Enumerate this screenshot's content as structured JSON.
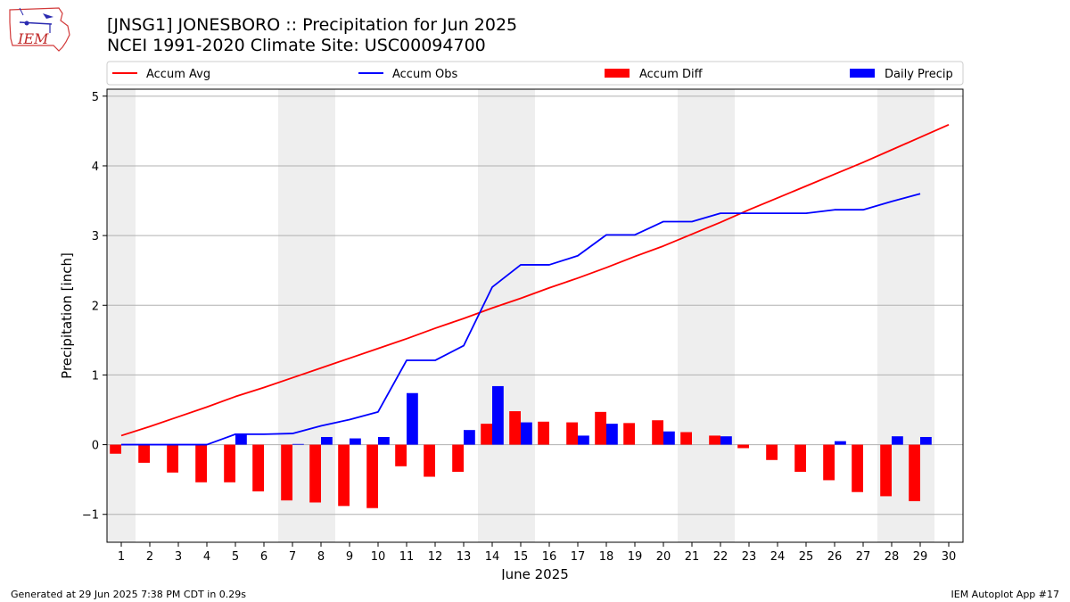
{
  "header": {
    "title_line1": "[JNSG1] JONESBORO :: Precipitation for Jun 2025",
    "title_line2": "NCEI 1991-2020 Climate Site: USC00094700",
    "logo_text": "IEM"
  },
  "footer": {
    "generated": "Generated at 29 Jun 2025 7:38 PM CDT in 0.29s",
    "app": "IEM Autoplot App #17"
  },
  "colors": {
    "accum_avg": "#ff0000",
    "accum_obs": "#0000ff",
    "accum_diff": "#ff0000",
    "daily_precip": "#0000ff",
    "weekend_shade": "#eeeeee",
    "grid": "#b0b0b0"
  },
  "chart_data": {
    "type": "bar",
    "xlabel": "June 2025",
    "ylabel": "Precipitation [inch]",
    "ylim": [
      -1.4,
      5.1
    ],
    "yticks": [
      -1,
      0,
      1,
      2,
      3,
      4,
      5
    ],
    "ytick_labels": [
      "−1",
      "0",
      "1",
      "2",
      "3",
      "4",
      "5"
    ],
    "xlim": [
      0.5,
      30.5
    ],
    "categories": [
      "1",
      "2",
      "3",
      "4",
      "5",
      "6",
      "7",
      "8",
      "9",
      "10",
      "11",
      "12",
      "13",
      "14",
      "15",
      "16",
      "17",
      "18",
      "19",
      "20",
      "21",
      "22",
      "23",
      "24",
      "25",
      "26",
      "27",
      "28",
      "29",
      "30"
    ],
    "grid": "horizontal",
    "legend_position": "top",
    "shaded_day_ranges": [
      [
        0.5,
        1.5
      ],
      [
        6.5,
        8.5
      ],
      [
        13.5,
        15.5
      ],
      [
        20.5,
        22.5
      ],
      [
        27.5,
        29.5
      ]
    ],
    "legend": [
      "Accum Avg",
      "Accum Obs",
      "Accum Diff",
      "Daily Precip"
    ],
    "series": [
      {
        "name": "Accum Avg",
        "kind": "line",
        "x": [
          1,
          2,
          3,
          4,
          5,
          6,
          7,
          8,
          9,
          10,
          11,
          12,
          13,
          14,
          15,
          16,
          17,
          18,
          19,
          20,
          21,
          22,
          23,
          24,
          25,
          26,
          27,
          28,
          29,
          30
        ],
        "values": [
          0.13,
          0.26,
          0.4,
          0.54,
          0.69,
          0.82,
          0.96,
          1.1,
          1.24,
          1.38,
          1.52,
          1.67,
          1.81,
          1.96,
          2.1,
          2.25,
          2.39,
          2.54,
          2.7,
          2.85,
          3.02,
          3.19,
          3.37,
          3.54,
          3.71,
          3.88,
          4.05,
          4.23,
          4.41,
          4.59
        ]
      },
      {
        "name": "Accum Obs",
        "kind": "line",
        "x": [
          1,
          2,
          3,
          4,
          5,
          6,
          7,
          8,
          9,
          10,
          11,
          12,
          13,
          14,
          15,
          16,
          17,
          18,
          19,
          20,
          21,
          22,
          23,
          24,
          25,
          26,
          27,
          28,
          29
        ],
        "values": [
          0.0,
          0.0,
          0.0,
          0.0,
          0.15,
          0.15,
          0.16,
          0.27,
          0.36,
          0.47,
          1.21,
          1.21,
          1.42,
          2.26,
          2.58,
          2.58,
          2.71,
          3.01,
          3.01,
          3.2,
          3.2,
          3.32,
          3.32,
          3.32,
          3.32,
          3.37,
          3.37,
          3.49,
          3.6
        ]
      },
      {
        "name": "Accum Diff",
        "kind": "bar",
        "offset": -0.2,
        "x": [
          1,
          2,
          3,
          4,
          5,
          6,
          7,
          8,
          9,
          10,
          11,
          12,
          13,
          14,
          15,
          16,
          17,
          18,
          19,
          20,
          21,
          22,
          23,
          24,
          25,
          26,
          27,
          28,
          29
        ],
        "values": [
          -0.13,
          -0.26,
          -0.4,
          -0.54,
          -0.54,
          -0.67,
          -0.8,
          -0.83,
          -0.88,
          -0.91,
          -0.31,
          -0.46,
          -0.39,
          0.3,
          0.48,
          0.33,
          0.32,
          0.47,
          0.31,
          0.35,
          0.18,
          0.13,
          -0.05,
          -0.22,
          -0.39,
          -0.51,
          -0.68,
          -0.74,
          -0.81
        ]
      },
      {
        "name": "Daily Precip",
        "kind": "bar",
        "offset": 0.2,
        "x": [
          1,
          2,
          3,
          4,
          5,
          6,
          7,
          8,
          9,
          10,
          11,
          12,
          13,
          14,
          15,
          16,
          17,
          18,
          19,
          20,
          21,
          22,
          23,
          24,
          25,
          26,
          27,
          28,
          29
        ],
        "values": [
          0.0,
          0.0,
          0.0,
          0.0,
          0.15,
          0.0,
          0.01,
          0.11,
          0.09,
          0.11,
          0.74,
          0.0,
          0.21,
          0.84,
          0.32,
          0.0,
          0.13,
          0.3,
          0.0,
          0.19,
          0.0,
          0.12,
          0.0,
          0.0,
          0.0,
          0.05,
          0.0,
          0.12,
          0.11
        ]
      }
    ]
  }
}
